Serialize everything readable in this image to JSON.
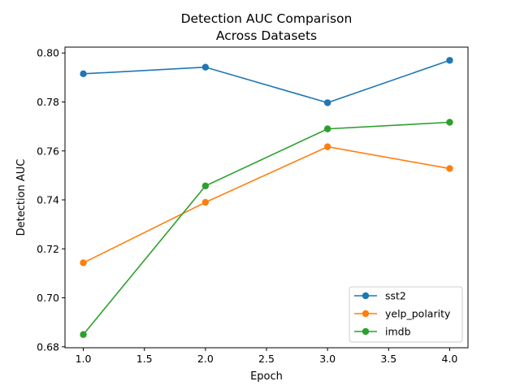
{
  "chart_data": {
    "type": "line",
    "title_lines": [
      "Detection AUC Comparison",
      "Across Datasets"
    ],
    "xlabel": "Epoch",
    "ylabel": "Detection AUC",
    "xlim": [
      0.85,
      4.15
    ],
    "ylim": [
      0.6796,
      0.8024
    ],
    "xticks": [
      1.0,
      1.5,
      2.0,
      2.5,
      3.0,
      3.5,
      4.0
    ],
    "xtick_labels": [
      "1.0",
      "1.5",
      "2.0",
      "2.5",
      "3.0",
      "3.5",
      "4.0"
    ],
    "yticks": [
      0.68,
      0.7,
      0.72,
      0.74,
      0.76,
      0.78,
      0.8
    ],
    "ytick_labels": [
      "0.68",
      "0.70",
      "0.72",
      "0.74",
      "0.76",
      "0.78",
      "0.80"
    ],
    "grid": false,
    "legend_position": "lower-right",
    "x": [
      1,
      2,
      3,
      4
    ],
    "series": [
      {
        "name": "sst2",
        "color": "#1f77b4",
        "values": [
          0.7915,
          0.7942,
          0.7797,
          0.797
        ]
      },
      {
        "name": "yelp_polarity",
        "color": "#ff7f0e",
        "values": [
          0.7143,
          0.739,
          0.7617,
          0.7528
        ]
      },
      {
        "name": "imdb",
        "color": "#2ca02c",
        "values": [
          0.685,
          0.7457,
          0.769,
          0.7717
        ]
      }
    ]
  }
}
